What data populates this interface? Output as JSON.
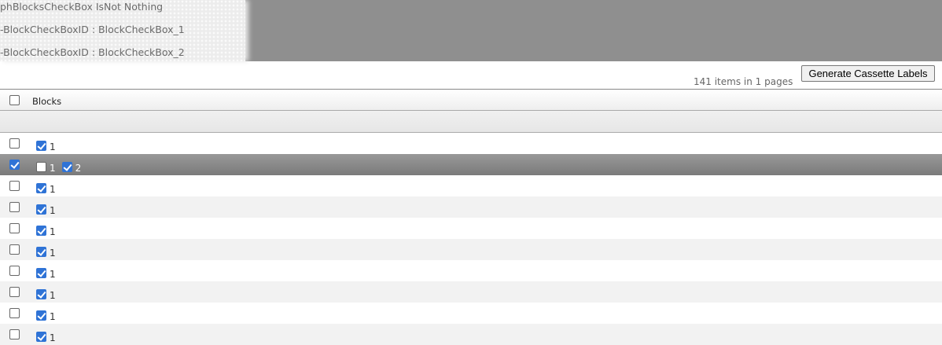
{
  "debug_lines": [
    "phBlocksCheckBox IsNot Nothing",
    "-BlockCheckBoxID : BlockCheckBox_1",
    "-BlockCheckBoxID : BlockCheckBox_2"
  ],
  "toolbar": {
    "generate_label": "Generate Cassette Labels",
    "pager_text": "141 items in 1 pages"
  },
  "grid": {
    "header": {
      "blocks": "Blocks",
      "select_all": false
    },
    "rows": [
      {
        "selected": false,
        "blocks": [
          {
            "label": "1",
            "checked": true
          }
        ]
      },
      {
        "selected": true,
        "blocks": [
          {
            "label": "1",
            "checked": false
          },
          {
            "label": "2",
            "checked": true
          }
        ]
      },
      {
        "selected": false,
        "blocks": [
          {
            "label": "1",
            "checked": true
          }
        ]
      },
      {
        "selected": false,
        "blocks": [
          {
            "label": "1",
            "checked": true
          }
        ]
      },
      {
        "selected": false,
        "blocks": [
          {
            "label": "1",
            "checked": true
          }
        ]
      },
      {
        "selected": false,
        "blocks": [
          {
            "label": "1",
            "checked": true
          }
        ]
      },
      {
        "selected": false,
        "blocks": [
          {
            "label": "1",
            "checked": true
          }
        ]
      },
      {
        "selected": false,
        "blocks": [
          {
            "label": "1",
            "checked": true
          }
        ]
      },
      {
        "selected": false,
        "blocks": [
          {
            "label": "1",
            "checked": true
          }
        ]
      },
      {
        "selected": false,
        "blocks": [
          {
            "label": "1",
            "checked": true
          }
        ]
      }
    ]
  }
}
